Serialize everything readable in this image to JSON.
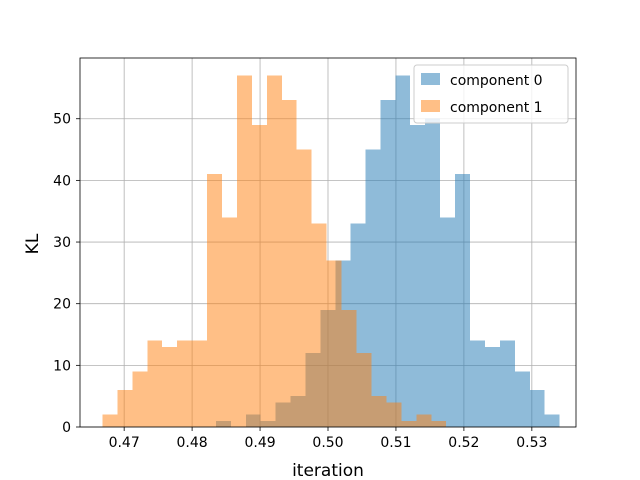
{
  "chart_data": {
    "type": "bar",
    "xlabel": "iteration",
    "ylabel": "KL",
    "xlim": [
      0.4635,
      0.5365
    ],
    "ylim": [
      0,
      59.85
    ],
    "xticks": [
      0.47,
      0.48,
      0.49,
      0.5,
      0.51,
      0.52,
      0.53
    ],
    "xtick_labels": [
      "0.47",
      "0.48",
      "0.49",
      "0.50",
      "0.51",
      "0.52",
      "0.53"
    ],
    "yticks": [
      0,
      10,
      20,
      30,
      40,
      50
    ],
    "ytick_labels": [
      "0",
      "10",
      "20",
      "30",
      "40",
      "50"
    ],
    "grid": true,
    "legend_position": "top-right",
    "series": [
      {
        "name": "component 0",
        "color": "#1f77b4",
        "alpha": 0.5,
        "bins": [
          {
            "x0": 0.4835,
            "x1": 0.4857,
            "count": 1
          },
          {
            "x0": 0.4879,
            "x1": 0.4901,
            "count": 2
          },
          {
            "x0": 0.4901,
            "x1": 0.4923,
            "count": 1
          },
          {
            "x0": 0.4923,
            "x1": 0.4945,
            "count": 4
          },
          {
            "x0": 0.4945,
            "x1": 0.4967,
            "count": 5
          },
          {
            "x0": 0.4967,
            "x1": 0.4989,
            "count": 12
          },
          {
            "x0": 0.4989,
            "x1": 0.5011,
            "count": 19
          },
          {
            "x0": 0.5011,
            "x1": 0.5033,
            "count": 27
          },
          {
            "x0": 0.5033,
            "x1": 0.5055,
            "count": 33
          },
          {
            "x0": 0.5055,
            "x1": 0.5077,
            "count": 45
          },
          {
            "x0": 0.5077,
            "x1": 0.5099,
            "count": 53
          },
          {
            "x0": 0.5099,
            "x1": 0.5121,
            "count": 57
          },
          {
            "x0": 0.5121,
            "x1": 0.5143,
            "count": 49
          },
          {
            "x0": 0.5143,
            "x1": 0.5165,
            "count": 50
          },
          {
            "x0": 0.5165,
            "x1": 0.5187,
            "count": 34
          },
          {
            "x0": 0.5187,
            "x1": 0.5209,
            "count": 41
          },
          {
            "x0": 0.5209,
            "x1": 0.5231,
            "count": 14
          },
          {
            "x0": 0.5231,
            "x1": 0.5253,
            "count": 13
          },
          {
            "x0": 0.5253,
            "x1": 0.5275,
            "count": 14
          },
          {
            "x0": 0.5275,
            "x1": 0.5297,
            "count": 9
          },
          {
            "x0": 0.5297,
            "x1": 0.5319,
            "count": 6
          },
          {
            "x0": 0.5319,
            "x1": 0.5341,
            "count": 2
          }
        ]
      },
      {
        "name": "component 1",
        "color": "#ff7f0e",
        "alpha": 0.5,
        "bins": [
          {
            "x0": 0.4668,
            "x1": 0.469,
            "count": 2
          },
          {
            "x0": 0.469,
            "x1": 0.4712,
            "count": 6
          },
          {
            "x0": 0.4712,
            "x1": 0.4734,
            "count": 9
          },
          {
            "x0": 0.4734,
            "x1": 0.4756,
            "count": 14
          },
          {
            "x0": 0.4756,
            "x1": 0.4778,
            "count": 13
          },
          {
            "x0": 0.4778,
            "x1": 0.48,
            "count": 14
          },
          {
            "x0": 0.48,
            "x1": 0.4822,
            "count": 14
          },
          {
            "x0": 0.4822,
            "x1": 0.4844,
            "count": 41
          },
          {
            "x0": 0.4844,
            "x1": 0.4866,
            "count": 34
          },
          {
            "x0": 0.4866,
            "x1": 0.4888,
            "count": 57
          },
          {
            "x0": 0.4888,
            "x1": 0.491,
            "count": 49
          },
          {
            "x0": 0.491,
            "x1": 0.4932,
            "count": 57
          },
          {
            "x0": 0.4932,
            "x1": 0.4954,
            "count": 53
          },
          {
            "x0": 0.4954,
            "x1": 0.4976,
            "count": 45
          },
          {
            "x0": 0.4976,
            "x1": 0.4998,
            "count": 33
          },
          {
            "x0": 0.4998,
            "x1": 0.502,
            "count": 27
          },
          {
            "x0": 0.502,
            "x1": 0.5042,
            "count": 19
          },
          {
            "x0": 0.5042,
            "x1": 0.5064,
            "count": 12
          },
          {
            "x0": 0.5064,
            "x1": 0.5086,
            "count": 5
          },
          {
            "x0": 0.5086,
            "x1": 0.5108,
            "count": 4
          },
          {
            "x0": 0.5108,
            "x1": 0.513,
            "count": 1
          },
          {
            "x0": 0.513,
            "x1": 0.5152,
            "count": 2
          },
          {
            "x0": 0.5152,
            "x1": 0.5174,
            "count": 1
          }
        ]
      }
    ]
  }
}
